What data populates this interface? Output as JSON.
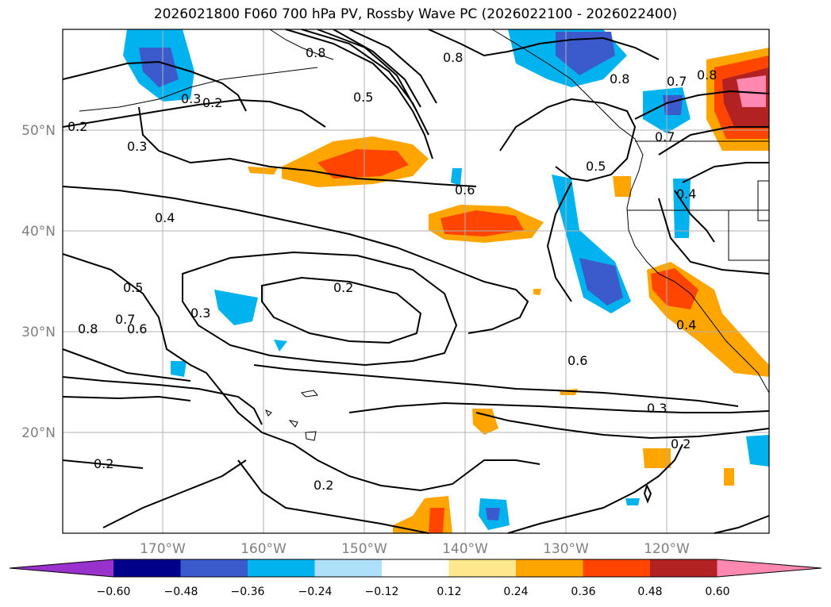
{
  "title": "2026021800 F060 700 hPa PV, Rossby Wave PC (2026022100 - 2026022400)",
  "map": {
    "lat_ticks": [
      "20°N",
      "30°N",
      "40°N",
      "50°N"
    ],
    "lon_ticks": [
      "170°W",
      "160°W",
      "150°W",
      "140°W",
      "130°W",
      "120°W"
    ],
    "contour_labels": [
      "0.2",
      "0.2",
      "0.2",
      "0.2",
      "0.2",
      "0.2",
      "0.3",
      "0.3",
      "0.3",
      "0.3",
      "0.4",
      "0.4",
      "0.4",
      "0.5",
      "0.5",
      "0.5",
      "0.6",
      "0.6",
      "0.6",
      "0.7",
      "0.7",
      "0.7",
      "0.8",
      "0.8",
      "0.8",
      "0.8",
      "0.8"
    ]
  },
  "colorbar": {
    "ticks": [
      "−0.60",
      "−0.48",
      "−0.36",
      "−0.24",
      "−0.12",
      "0.12",
      "0.24",
      "0.36",
      "0.48",
      "0.60"
    ],
    "colors": [
      "#9932cc",
      "#00008b",
      "#3b5bcc",
      "#00b2ee",
      "#afe0fa",
      "#ffffff",
      "#ffe78b",
      "#ffa500",
      "#ff4500",
      "#b22222",
      "#ff88b0"
    ]
  }
}
